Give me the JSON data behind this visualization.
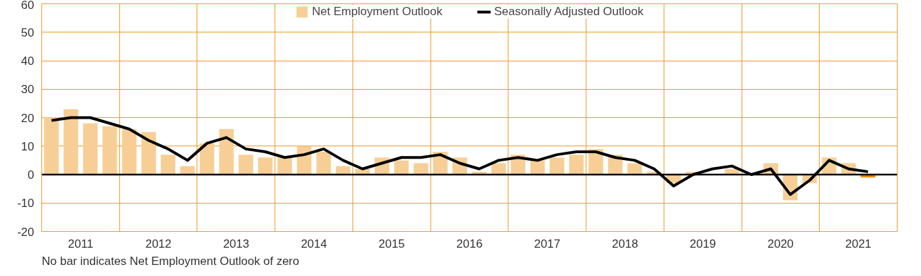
{
  "chart_data": {
    "type": "bar",
    "x": [
      2011.125,
      2011.375,
      2011.625,
      2011.875,
      2012.125,
      2012.375,
      2012.625,
      2012.875,
      2013.125,
      2013.375,
      2013.625,
      2013.875,
      2014.125,
      2014.375,
      2014.625,
      2014.875,
      2015.125,
      2015.375,
      2015.625,
      2015.875,
      2016.125,
      2016.375,
      2016.625,
      2016.875,
      2017.125,
      2017.375,
      2017.625,
      2017.875,
      2018.125,
      2018.375,
      2018.625,
      2018.875,
      2019.125,
      2019.375,
      2019.625,
      2019.875,
      2020.125,
      2020.375,
      2020.625,
      2020.875,
      2021.125,
      2021.375,
      2021.625
    ],
    "series": [
      {
        "name": "Net Employment Outlook",
        "color": "#f7cf96",
        "colors": [
          "#f7cf96",
          "#f7cf96",
          "#f7cf96",
          "#f7cf96",
          "#f7cf96",
          "#f7cf96",
          "#f7cf96",
          "#f7cf96",
          "#f7cf96",
          "#f7cf96",
          "#f7cf96",
          "#f7cf96",
          "#f7cf96",
          "#f7cf96",
          "#f7cf96",
          "#f7cf96",
          "#f7cf96",
          "#f7cf96",
          "#f7cf96",
          "#f7cf96",
          "#f7cf96",
          "#f7cf96",
          "#f7cf96",
          "#f7cf96",
          "#f7cf96",
          "#f7cf96",
          "#f7cf96",
          "#f7cf96",
          "#f7cf96",
          "#f7cf96",
          "#f7cf96",
          "#f7cf96",
          "#f7cf96",
          "#f7cf96",
          "#f7cf96",
          "#f7cf96",
          "#f7cf96",
          "#f7cf96",
          "#f7cf96",
          "#f7cf96",
          "#f7cf96",
          "#f7cf96",
          "#e98b00"
        ],
        "values": [
          20,
          23,
          18,
          17,
          16,
          15,
          7,
          3,
          11,
          16,
          7,
          6,
          6,
          10,
          8,
          3,
          2,
          6,
          5,
          4,
          8,
          6,
          1,
          4,
          7,
          5,
          6,
          7,
          9,
          7,
          4,
          1,
          -3,
          1,
          0,
          2,
          0,
          4,
          -9,
          -3,
          6,
          4,
          -1
        ]
      },
      {
        "name": "Seasonally Adjusted Outlook",
        "type": "line",
        "color": "#000000",
        "values": [
          19,
          20,
          20,
          18,
          16,
          12,
          9,
          5,
          11,
          13,
          9,
          8,
          6,
          7,
          9,
          5,
          2,
          4,
          6,
          6,
          7,
          4,
          2,
          5,
          6,
          5,
          7,
          8,
          8,
          6,
          5,
          2,
          -4,
          0,
          2,
          3,
          0,
          2,
          -7,
          -2,
          5,
          2,
          1
        ]
      }
    ],
    "xlim": [
      2011,
      2022
    ],
    "xticks": [
      {
        "value": 2011,
        "label": null
      },
      {
        "value": 2011.5,
        "label": "2011"
      },
      {
        "value": 2012,
        "label": null
      },
      {
        "value": 2012.5,
        "label": "2012"
      },
      {
        "value": 2013,
        "label": null
      },
      {
        "value": 2013.5,
        "label": "2013"
      },
      {
        "value": 2014,
        "label": null
      },
      {
        "value": 2014.5,
        "label": "2014"
      },
      {
        "value": 2015,
        "label": null
      },
      {
        "value": 2015.5,
        "label": "2015"
      },
      {
        "value": 2016,
        "label": null
      },
      {
        "value": 2016.5,
        "label": "2016"
      },
      {
        "value": 2017,
        "label": null
      },
      {
        "value": 2017.5,
        "label": "2017"
      },
      {
        "value": 2018,
        "label": null
      },
      {
        "value": 2018.5,
        "label": "2018"
      },
      {
        "value": 2019,
        "label": null
      },
      {
        "value": 2019.5,
        "label": "2019"
      },
      {
        "value": 2020,
        "label": null
      },
      {
        "value": 2020.5,
        "label": "2020"
      },
      {
        "value": 2021,
        "label": null
      },
      {
        "value": 2021.5,
        "label": "2021"
      },
      {
        "value": 2022,
        "label": null
      }
    ],
    "ylim": [
      -20,
      60
    ],
    "yticks": [
      -20,
      -10,
      0,
      10,
      20,
      30,
      40,
      50,
      60
    ],
    "grid": true,
    "legend": "top",
    "ref_lines": [
      {
        "axis": "y",
        "value": 0,
        "label": null,
        "color": "#000000"
      }
    ],
    "annotations": [
      "No bar indicates Net Employment Outlook of zero"
    ]
  }
}
